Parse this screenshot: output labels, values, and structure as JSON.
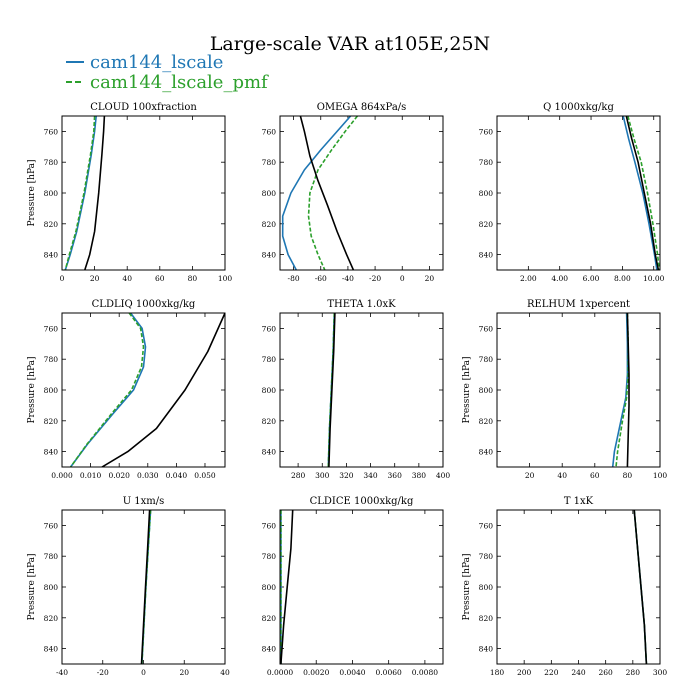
{
  "title": "Large-scale VAR at105E,25N",
  "legend": [
    {
      "label": "cam144_lscale",
      "color": "#1f77b4",
      "dashed": false
    },
    {
      "label": "cam144_lscale_pmf",
      "color": "#2ca02c",
      "dashed": true
    }
  ],
  "colors": {
    "control": "#000000",
    "lscale": "#1f77b4",
    "pmf": "#2ca02c"
  },
  "chart_data": [
    {
      "type": "line",
      "title": "CLOUD  100xfraction",
      "ylabel": "Pressure [hPa]",
      "xlim": [
        0,
        100
      ],
      "ylim": [
        850,
        750
      ],
      "xticks": [
        0,
        20,
        40,
        60,
        80,
        100
      ],
      "xtick_labels": [
        "0",
        "20",
        "40",
        "60",
        "80",
        "100"
      ],
      "yticks": [
        760,
        780,
        800,
        820,
        840
      ],
      "ytick_labels": [
        "760",
        "780",
        "800",
        "820",
        "840"
      ],
      "series": [
        {
          "name": "",
          "color": "#000000",
          "x": [
            26,
            25.5,
            24.5,
            22.5,
            20,
            17,
            14
          ],
          "y": [
            750,
            760,
            775,
            800,
            825,
            840,
            850
          ]
        },
        {
          "name": "cam144_lscale",
          "color": "#1f77b4",
          "x": [
            21,
            20,
            18,
            14,
            9,
            5,
            2
          ],
          "y": [
            750,
            760,
            775,
            800,
            825,
            840,
            850
          ]
        },
        {
          "name": "cam144_lscale_pmf",
          "color": "#2ca02c",
          "dashed": true,
          "x": [
            20,
            19.5,
            17.5,
            13.5,
            8.5,
            4.5,
            2
          ],
          "y": [
            750,
            760,
            775,
            800,
            825,
            840,
            850
          ]
        }
      ]
    },
    {
      "type": "line",
      "title": "OMEGA  864xPa/s",
      "ylabel": "",
      "xlim": [
        -90,
        30
      ],
      "ylim": [
        850,
        750
      ],
      "xticks": [
        -80,
        -60,
        -40,
        -20,
        0,
        20
      ],
      "xtick_labels": [
        "-80",
        "-60",
        "-40",
        "-20",
        "0",
        "20"
      ],
      "yticks": [
        760,
        780,
        800,
        820,
        840
      ],
      "ytick_labels": [
        "760",
        "780",
        "800",
        "820",
        "840"
      ],
      "series": [
        {
          "name": "",
          "color": "#000000",
          "x": [
            -75,
            -72,
            -68,
            -62,
            -55,
            -48,
            -41,
            -36
          ],
          "y": [
            750,
            760,
            776,
            792,
            808,
            825,
            840,
            850
          ]
        },
        {
          "name": "cam144_lscale",
          "color": "#1f77b4",
          "x": [
            -38,
            -48,
            -60,
            -72,
            -82,
            -88,
            -88,
            -84,
            -78
          ],
          "y": [
            750,
            760,
            772,
            785,
            800,
            815,
            828,
            840,
            850
          ]
        },
        {
          "name": "cam144_lscale_pmf",
          "color": "#2ca02c",
          "dashed": true,
          "x": [
            -33,
            -42,
            -52,
            -62,
            -68,
            -69,
            -67,
            -62,
            -57
          ],
          "y": [
            750,
            760,
            772,
            785,
            800,
            815,
            828,
            840,
            850
          ]
        }
      ]
    },
    {
      "type": "line",
      "title": "Q  1000xkg/kg",
      "ylabel": "",
      "xlim": [
        0,
        10.4
      ],
      "ylim": [
        850,
        750
      ],
      "xticks": [
        2,
        4,
        6,
        8,
        10
      ],
      "xtick_labels": [
        "2.00",
        "4.00",
        "6.00",
        "8.00",
        "10.00"
      ],
      "yticks": [
        760,
        780,
        800,
        820,
        840
      ],
      "ytick_labels": [
        "760",
        "780",
        "800",
        "820",
        "840"
      ],
      "series": [
        {
          "name": "",
          "color": "#000000",
          "x": [
            8.25,
            8.6,
            9.0,
            9.4,
            9.8,
            10.1,
            10.3
          ],
          "y": [
            750,
            765,
            780,
            800,
            820,
            840,
            850
          ]
        },
        {
          "name": "cam144_lscale",
          "color": "#1f77b4",
          "x": [
            8.05,
            8.4,
            8.8,
            9.3,
            9.7,
            10.05,
            10.2
          ],
          "y": [
            750,
            765,
            780,
            800,
            820,
            840,
            850
          ]
        },
        {
          "name": "cam144_lscale_pmf",
          "color": "#2ca02c",
          "dashed": true,
          "x": [
            8.35,
            8.75,
            9.2,
            9.6,
            9.95,
            10.25,
            10.35
          ],
          "y": [
            750,
            765,
            780,
            800,
            820,
            840,
            850
          ]
        }
      ]
    },
    {
      "type": "line",
      "title": "CLDLIQ  1000xkg/kg",
      "ylabel": "Pressure [hPa]",
      "xlim": [
        0,
        0.057
      ],
      "ylim": [
        850,
        750
      ],
      "xticks": [
        0,
        0.01,
        0.02,
        0.03,
        0.04,
        0.05
      ],
      "xtick_labels": [
        "0.000",
        "0.010",
        "0.020",
        "0.030",
        "0.040",
        "0.050"
      ],
      "yticks": [
        760,
        780,
        800,
        820,
        840
      ],
      "ytick_labels": [
        "760",
        "780",
        "800",
        "820",
        "840"
      ],
      "series": [
        {
          "name": "",
          "color": "#000000",
          "x": [
            0.057,
            0.051,
            0.043,
            0.033,
            0.023,
            0.014
          ],
          "y": [
            750,
            775,
            800,
            825,
            840,
            850
          ]
        },
        {
          "name": "cam144_lscale",
          "color": "#1f77b4",
          "x": [
            0.024,
            0.028,
            0.0292,
            0.0285,
            0.025,
            0.018,
            0.009,
            0.003
          ],
          "y": [
            750,
            760,
            772,
            785,
            800,
            815,
            835,
            850
          ]
        },
        {
          "name": "cam144_lscale_pmf",
          "color": "#2ca02c",
          "dashed": true,
          "x": [
            0.0235,
            0.0275,
            0.0285,
            0.0278,
            0.0243,
            0.0175,
            0.0088,
            0.003
          ],
          "y": [
            750,
            760,
            772,
            785,
            800,
            815,
            835,
            850
          ]
        }
      ]
    },
    {
      "type": "line",
      "title": "THETA  1.0xK",
      "ylabel": "",
      "xlim": [
        265,
        400
      ],
      "ylim": [
        850,
        750
      ],
      "xticks": [
        280,
        300,
        320,
        340,
        360,
        380,
        400
      ],
      "xtick_labels": [
        "280",
        "300",
        "320",
        "340",
        "360",
        "380",
        "400"
      ],
      "yticks": [
        760,
        780,
        800,
        820,
        840
      ],
      "ytick_labels": [
        "760",
        "780",
        "800",
        "820",
        "840"
      ],
      "series": [
        {
          "name": "",
          "color": "#000000",
          "x": [
            310.5,
            309.5,
            308,
            306.5,
            305.5
          ],
          "y": [
            750,
            775,
            800,
            825,
            850
          ]
        },
        {
          "name": "cam144_lscale",
          "color": "#1f77b4",
          "x": [
            310,
            309,
            307.5,
            306,
            305
          ],
          "y": [
            750,
            775,
            800,
            825,
            850
          ]
        },
        {
          "name": "cam144_lscale_pmf",
          "color": "#2ca02c",
          "dashed": true,
          "x": [
            310,
            309,
            307.5,
            306,
            305
          ],
          "y": [
            750,
            775,
            800,
            825,
            850
          ]
        }
      ]
    },
    {
      "type": "line",
      "title": "RELHUM  1xpercent",
      "ylabel": "Pressure [hPa]",
      "xlim": [
        0,
        100
      ],
      "ylim": [
        850,
        750
      ],
      "xticks": [
        20,
        40,
        60,
        80,
        100
      ],
      "xtick_labels": [
        "20",
        "40",
        "60",
        "80",
        "100"
      ],
      "yticks": [
        760,
        780,
        800,
        820,
        840
      ],
      "ytick_labels": [
        "760",
        "780",
        "800",
        "820",
        "840"
      ],
      "series": [
        {
          "name": "",
          "color": "#000000",
          "x": [
            80,
            80.5,
            81,
            81,
            80.5,
            80
          ],
          "y": [
            750,
            770,
            790,
            810,
            830,
            850
          ]
        },
        {
          "name": "cam144_lscale",
          "color": "#1f77b4",
          "x": [
            79.5,
            80,
            80,
            79,
            76,
            72,
            71
          ],
          "y": [
            750,
            770,
            790,
            805,
            820,
            840,
            850
          ]
        },
        {
          "name": "cam144_lscale_pmf",
          "color": "#2ca02c",
          "dashed": true,
          "x": [
            80,
            80.5,
            80.5,
            79.5,
            77,
            74,
            73
          ],
          "y": [
            750,
            770,
            790,
            805,
            820,
            840,
            850
          ]
        }
      ]
    },
    {
      "type": "line",
      "title": "U  1xm/s",
      "ylabel": "Pressure [hPa]",
      "xlim": [
        -40,
        40
      ],
      "ylim": [
        850,
        750
      ],
      "xticks": [
        -40,
        -20,
        0,
        20,
        40
      ],
      "xtick_labels": [
        "-40",
        "-20",
        "0",
        "20",
        "40"
      ],
      "yticks": [
        760,
        780,
        800,
        820,
        840
      ],
      "ytick_labels": [
        "760",
        "780",
        "800",
        "820",
        "840"
      ],
      "series": [
        {
          "name": "",
          "color": "#000000",
          "x": [
            3,
            2,
            1,
            0,
            -1
          ],
          "y": [
            750,
            775,
            800,
            825,
            850
          ]
        },
        {
          "name": "cam144_lscale",
          "color": "#1f77b4",
          "x": [
            3.5,
            2.3,
            1.2,
            0.2,
            -0.8
          ],
          "y": [
            750,
            775,
            800,
            825,
            850
          ]
        },
        {
          "name": "cam144_lscale_pmf",
          "color": "#2ca02c",
          "dashed": true,
          "x": [
            3.5,
            2.3,
            1.2,
            0.2,
            -0.8
          ],
          "y": [
            750,
            775,
            800,
            825,
            850
          ]
        }
      ]
    },
    {
      "type": "line",
      "title": "CLDICE  1000xkg/kg",
      "ylabel": "",
      "xlim": [
        0,
        0.009
      ],
      "ylim": [
        850,
        750
      ],
      "xticks": [
        0,
        0.002,
        0.004,
        0.006,
        0.008
      ],
      "xtick_labels": [
        "0.0000",
        "0.0020",
        "0.0040",
        "0.0060",
        "0.0080"
      ],
      "yticks": [
        760,
        780,
        800,
        820,
        840
      ],
      "ytick_labels": [
        "760",
        "780",
        "800",
        "820",
        "840"
      ],
      "series": [
        {
          "name": "",
          "color": "#000000",
          "x": [
            0.0007,
            0.0006,
            0.0004,
            0.0002,
            5e-05
          ],
          "y": [
            750,
            775,
            800,
            825,
            850
          ]
        },
        {
          "name": "cam144_lscale",
          "color": "#1f77b4",
          "x": [
            5e-05,
            5e-05,
            5e-05,
            5e-05,
            5e-05
          ],
          "y": [
            750,
            775,
            800,
            825,
            850
          ]
        },
        {
          "name": "cam144_lscale_pmf",
          "color": "#2ca02c",
          "dashed": true,
          "x": [
            5e-05,
            5e-05,
            5e-05,
            5e-05,
            5e-05
          ],
          "y": [
            750,
            775,
            800,
            825,
            850
          ]
        }
      ]
    },
    {
      "type": "line",
      "title": "T  1xK",
      "ylabel": "Pressure [hPa]",
      "xlim": [
        180,
        300
      ],
      "ylim": [
        850,
        750
      ],
      "xticks": [
        180,
        200,
        220,
        240,
        260,
        280,
        300
      ],
      "xtick_labels": [
        "180",
        "200",
        "220",
        "240",
        "260",
        "280",
        "300"
      ],
      "yticks": [
        760,
        780,
        800,
        820,
        840
      ],
      "ytick_labels": [
        "760",
        "780",
        "800",
        "820",
        "840"
      ],
      "series": [
        {
          "name": "",
          "color": "#000000",
          "x": [
            281,
            283.5,
            286,
            288.5,
            290
          ],
          "y": [
            750,
            775,
            800,
            825,
            850
          ]
        },
        {
          "name": "cam144_lscale",
          "color": "#1f77b4",
          "x": [
            281,
            283.5,
            286,
            288.5,
            290
          ],
          "y": [
            750,
            775,
            800,
            825,
            850
          ]
        },
        {
          "name": "cam144_lscale_pmf",
          "color": "#2ca02c",
          "dashed": true,
          "x": [
            281,
            283.5,
            286,
            288.5,
            290
          ],
          "y": [
            750,
            775,
            800,
            825,
            850
          ]
        }
      ]
    }
  ]
}
